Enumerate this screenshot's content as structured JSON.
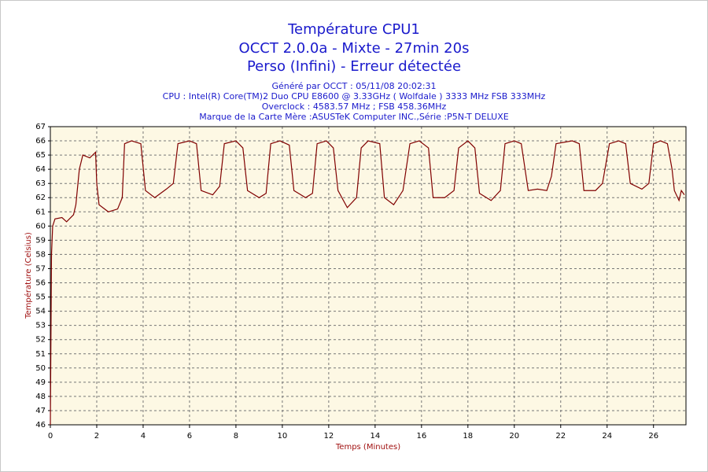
{
  "chart_data": {
    "type": "line",
    "title_lines": [
      "Température CPU1",
      "OCCT 2.0.0a - Mixte - 27min 20s",
      "Perso (Infini) - Erreur détectée"
    ],
    "subtitle_lines": [
      "Généré par OCCT : 05/11/08 20:02:31",
      "CPU : Intel(R) Core(TM)2 Duo CPU E8600 @ 3.33GHz ( Wolfdale ) 3333 MHz FSB 333MHz",
      "Overclock : 4583.57 MHz ; FSB 458.36MHz",
      "Marque de la Carte Mère :ASUSTeK Computer INC.,Série :P5N-T DELUXE"
    ],
    "x_label": "Temps (Minutes)",
    "y_label": "Température (Celsius)",
    "x": [
      0,
      0.05,
      0.1,
      0.2,
      0.5,
      0.7,
      1.0,
      1.1,
      1.25,
      1.4,
      1.7,
      1.95,
      2.0,
      2.1,
      2.5,
      2.9,
      3.1,
      3.2,
      3.5,
      3.9,
      4.1,
      4.5,
      5.0,
      5.3,
      5.5,
      6.0,
      6.3,
      6.5,
      7.0,
      7.3,
      7.5,
      8.0,
      8.3,
      8.5,
      9.0,
      9.3,
      9.5,
      9.9,
      10.3,
      10.5,
      11.0,
      11.3,
      11.5,
      11.9,
      12.2,
      12.4,
      12.8,
      13.2,
      13.4,
      13.7,
      14.2,
      14.4,
      14.8,
      15.2,
      15.5,
      15.9,
      16.3,
      16.5,
      17.0,
      17.4,
      17.6,
      18.0,
      18.3,
      18.5,
      19.0,
      19.4,
      19.6,
      20.0,
      20.3,
      20.6,
      21.0,
      21.4,
      21.6,
      21.8,
      22.5,
      22.8,
      23.0,
      23.5,
      23.8,
      24.1,
      24.5,
      24.8,
      25.0,
      25.5,
      25.8,
      26.0,
      26.3,
      26.6,
      26.8,
      26.9,
      27.1,
      27.2,
      27.33
    ],
    "series": [
      {
        "color": "#800000",
        "values": [
          46,
          58,
          60,
          60.5,
          60.6,
          60.3,
          60.8,
          61.5,
          64,
          65,
          64.8,
          65.2,
          63,
          61.5,
          61,
          61.2,
          62,
          65.8,
          66,
          65.8,
          62.5,
          62,
          62.6,
          63,
          65.8,
          66,
          65.8,
          62.5,
          62.2,
          62.8,
          65.8,
          66,
          65.5,
          62.5,
          62,
          62.3,
          65.8,
          66,
          65.7,
          62.5,
          62,
          62.3,
          65.8,
          66,
          65.5,
          62.5,
          61.3,
          62,
          65.5,
          66,
          65.8,
          62,
          61.5,
          62.5,
          65.8,
          66,
          65.5,
          62,
          62,
          62.5,
          65.5,
          66,
          65.5,
          62.3,
          61.8,
          62.5,
          65.8,
          66,
          65.8,
          62.5,
          62.6,
          62.5,
          63.5,
          65.8,
          66,
          65.8,
          62.5,
          62.5,
          63,
          65.8,
          66,
          65.8,
          63,
          62.6,
          63,
          65.8,
          66,
          65.8,
          64,
          62.5,
          61.8,
          62.5,
          62.2
        ]
      }
    ],
    "xlim": [
      0,
      27.4
    ],
    "ylim": [
      46,
      67
    ],
    "xticks": [
      0,
      2,
      4,
      6,
      8,
      10,
      12,
      14,
      16,
      18,
      20,
      22,
      24,
      26
    ],
    "yticks": [
      46,
      47,
      48,
      49,
      50,
      51,
      52,
      53,
      54,
      55,
      56,
      57,
      58,
      59,
      60,
      61,
      62,
      63,
      64,
      65,
      66,
      67
    ],
    "grid": true,
    "plot_background": "#fdf8e4"
  }
}
